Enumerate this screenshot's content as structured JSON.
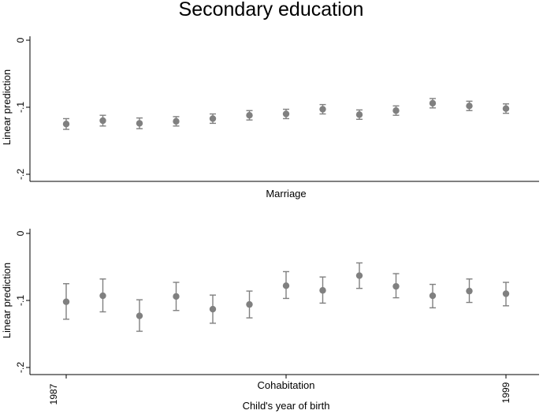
{
  "chart_data": {
    "type": "scatter",
    "title": "Secondary education",
    "xlabel": "Child's year of birth",
    "x_ticks": [
      {
        "x": 1987,
        "label": "1987"
      },
      {
        "x": 1999,
        "label": "1999"
      }
    ],
    "x": [
      1987,
      1988,
      1989,
      1990,
      1991,
      1992,
      1993,
      1994,
      1995,
      1996,
      1997,
      1998,
      1999
    ],
    "xlim": [
      1986.5,
      1999.5
    ],
    "colors": {
      "marker": "#808080",
      "ci": "#808080"
    },
    "panels": [
      {
        "label": "Marriage",
        "ylabel": "Linear prediction",
        "ylim": [
          -0.2,
          0.0
        ],
        "y_ticks": [
          {
            "value": 0.0,
            "label": "0"
          },
          {
            "value": -0.1,
            "label": "-.1"
          },
          {
            "value": -0.2,
            "label": "-.2"
          }
        ],
        "estimates": [
          -0.125,
          -0.12,
          -0.124,
          -0.121,
          -0.117,
          -0.112,
          -0.11,
          -0.103,
          -0.111,
          -0.105,
          -0.094,
          -0.098,
          -0.102
        ],
        "ci_low": [
          -0.133,
          -0.128,
          -0.132,
          -0.128,
          -0.124,
          -0.119,
          -0.117,
          -0.11,
          -0.118,
          -0.112,
          -0.101,
          -0.105,
          -0.109
        ],
        "ci_high": [
          -0.117,
          -0.112,
          -0.116,
          -0.114,
          -0.11,
          -0.105,
          -0.103,
          -0.096,
          -0.104,
          -0.098,
          -0.087,
          -0.091,
          -0.095
        ]
      },
      {
        "label": "Cohabitation",
        "ylabel": "Linear prediction",
        "ylim": [
          -0.2,
          0.0
        ],
        "y_ticks": [
          {
            "value": 0.0,
            "label": "0"
          },
          {
            "value": -0.1,
            "label": "-.1"
          },
          {
            "value": -0.2,
            "label": "-.2"
          }
        ],
        "estimates": [
          -0.102,
          -0.093,
          -0.123,
          -0.094,
          -0.113,
          -0.106,
          -0.078,
          -0.085,
          -0.063,
          -0.079,
          -0.093,
          -0.086,
          -0.09
        ],
        "ci_low": [
          -0.128,
          -0.117,
          -0.146,
          -0.115,
          -0.134,
          -0.126,
          -0.097,
          -0.104,
          -0.082,
          -0.096,
          -0.111,
          -0.103,
          -0.108
        ],
        "ci_high": [
          -0.075,
          -0.068,
          -0.099,
          -0.073,
          -0.092,
          -0.086,
          -0.057,
          -0.065,
          -0.044,
          -0.06,
          -0.076,
          -0.068,
          -0.073
        ]
      }
    ]
  }
}
